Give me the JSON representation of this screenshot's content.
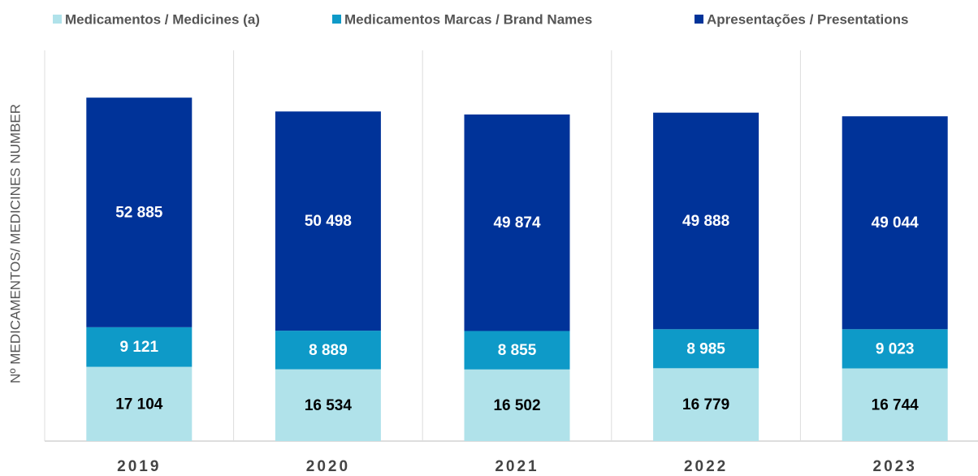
{
  "chart_data": {
    "type": "stacked_bar",
    "y_label": "Nº MEDICAMENTOS/ MEDICINES NUMBER",
    "categories": [
      "2019",
      "2020",
      "2021",
      "2022",
      "2023"
    ],
    "series": [
      {
        "name": "Medicamentos /  Medicines (a)",
        "color": "#b0e2ea",
        "label_color": "#000000",
        "values": [
          17104,
          16534,
          16502,
          16779,
          16744
        ],
        "value_labels": [
          "17 104",
          "16 534",
          "16 502",
          "16 779",
          "16 744"
        ]
      },
      {
        "name": "Medicamentos Marcas /  Brand Names",
        "color": "#0e9ac8",
        "label_color": "#ffffff",
        "values": [
          9121,
          8889,
          8855,
          8985,
          9023
        ],
        "value_labels": [
          "9 121",
          "8 889",
          "8 855",
          "8 985",
          "9 023"
        ]
      },
      {
        "name": "Apresentações / Presentations",
        "color": "#003399",
        "label_color": "#ffffff",
        "values": [
          52885,
          50498,
          49874,
          49888,
          49044
        ],
        "value_labels": [
          "52 885",
          "50 498",
          "49 874",
          "49 888",
          "49 044"
        ]
      }
    ],
    "ylim": [
      0,
      90000
    ],
    "grid": true,
    "legend": "top"
  }
}
